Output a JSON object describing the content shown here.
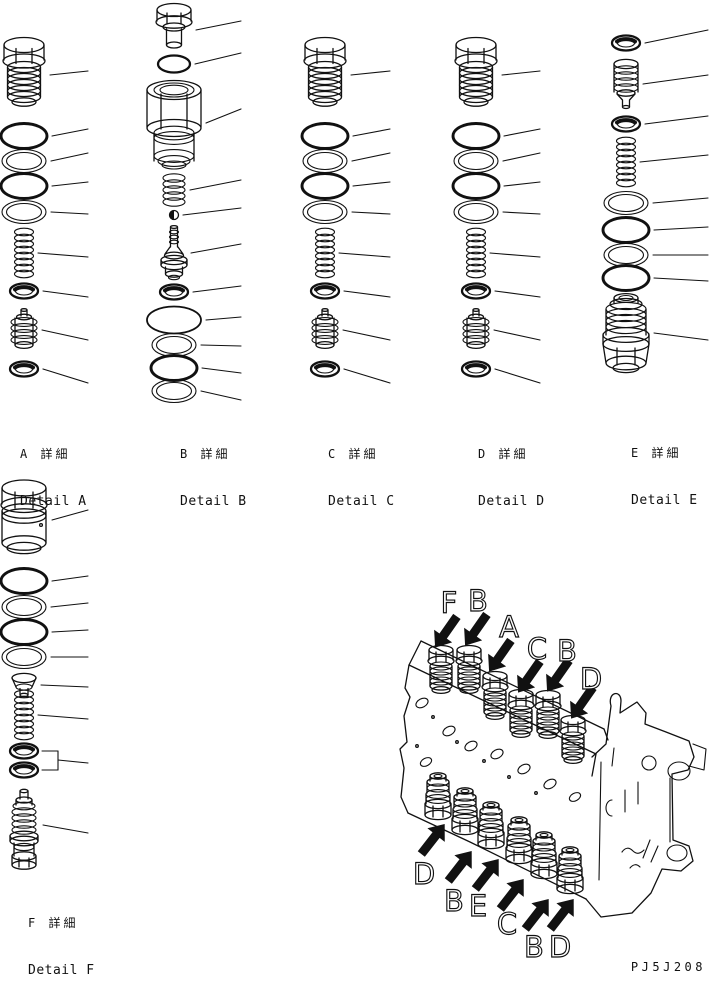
{
  "page": {
    "code": "PJ5J208"
  },
  "details": [
    {
      "id": "A",
      "label_jp": "A 詳細",
      "label_en": "Detail A",
      "parts": [
        "hex-plug",
        "o-ring",
        "backup-ring",
        "o-ring",
        "backup-ring",
        "spring",
        "seal-ring",
        "relief-valve",
        "seal-ring"
      ]
    },
    {
      "id": "B",
      "label_jp": "B 詳細",
      "label_en": "Detail B",
      "parts": [
        "hex-bolt",
        "o-ring-small",
        "sleeve",
        "spring-short",
        "ball",
        "needle-valve",
        "seal-ring",
        "o-ring-large",
        "backup-ring",
        "o-ring",
        "backup-ring"
      ]
    },
    {
      "id": "C",
      "label_jp": "C 詳細",
      "label_en": "Detail C",
      "parts": [
        "hex-plug",
        "o-ring",
        "backup-ring",
        "o-ring",
        "backup-ring",
        "spring",
        "seal-ring",
        "relief-valve",
        "seal-ring"
      ]
    },
    {
      "id": "D",
      "label_jp": "D 詳細",
      "label_en": "Detail D",
      "parts": [
        "hex-plug",
        "o-ring",
        "backup-ring",
        "o-ring",
        "backup-ring",
        "spring",
        "seal-ring",
        "relief-valve",
        "seal-ring"
      ]
    },
    {
      "id": "E",
      "label_jp": "E 詳細",
      "label_en": "Detail E",
      "parts": [
        "seal-ring",
        "poppet-valve",
        "seal-ring",
        "spring",
        "backup-ring",
        "o-ring",
        "backup-ring",
        "o-ring",
        "valve-body"
      ]
    },
    {
      "id": "F",
      "label_jp": "F 詳細",
      "label_en": "Detail F",
      "parts": [
        "hex-plug-large",
        "o-ring",
        "backup-ring",
        "o-ring",
        "backup-ring",
        "poppet",
        "spring",
        "seal-ring",
        "seal-ring",
        "valve-assembly"
      ]
    }
  ],
  "assembly": {
    "top_labels": [
      "F",
      "B",
      "A",
      "C",
      "B",
      "D"
    ],
    "bottom_labels": [
      "D",
      "B",
      "E",
      "C",
      "B",
      "D"
    ]
  }
}
